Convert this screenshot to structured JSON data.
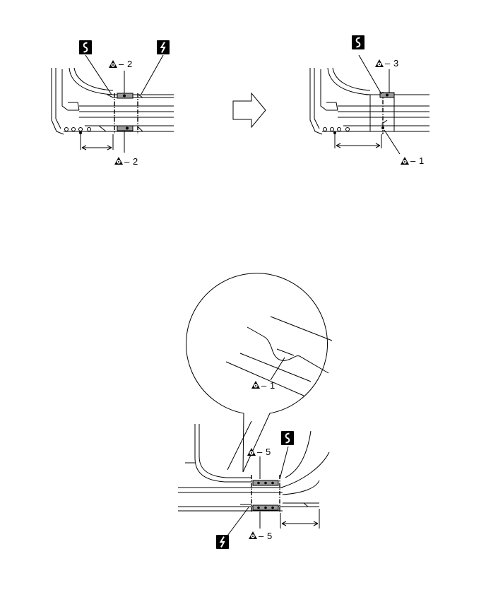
{
  "callouts": {
    "top_left_upper": "2",
    "top_left_lower": "2",
    "top_right_upper": "3",
    "top_right_lower": "1",
    "bottom_detail": "1",
    "bottom_upper": "5",
    "bottom_lower": "5"
  },
  "icons": {
    "cut_line_icon": "wavy-cut-icon",
    "zigzag_cut_icon": "zigzag-cut-icon",
    "weld_point_icon": "triangle-weld-icon",
    "process_arrow_icon": "right-arrow-icon"
  },
  "colors": {
    "line": "#000000",
    "weld_fill": "#999999",
    "background": "#ffffff"
  }
}
